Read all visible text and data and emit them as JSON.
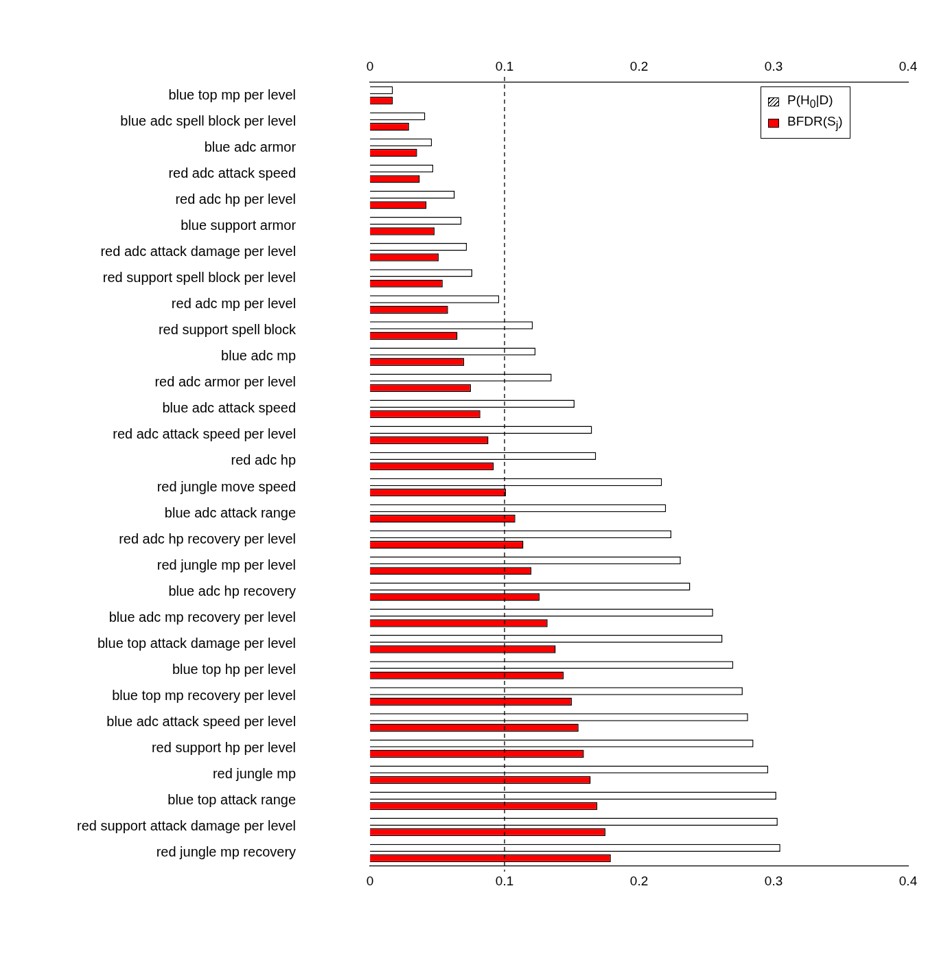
{
  "chart_data": {
    "type": "bar",
    "orientation": "horizontal",
    "categories": [
      "blue top mp per level",
      "blue adc spell block per level",
      "blue adc armor",
      "red adc attack speed",
      "red adc hp per level",
      "blue support armor",
      "red adc attack damage per level",
      "red support spell block per level",
      "red adc mp per level",
      "red support spell block",
      "blue adc mp",
      "red adc armor per level",
      "blue adc attack speed",
      "red adc attack speed per level",
      "red adc hp",
      "red jungle move speed",
      "blue adc attack range",
      "red adc hp recovery per level",
      "red jungle mp per level",
      "blue adc hp recovery",
      "blue adc mp recovery per level",
      "blue top attack damage per level",
      "blue top hp per level",
      "blue top mp recovery per level",
      "blue adc attack speed per level",
      "red support hp per level",
      "red jungle mp",
      "blue top attack range",
      "red support attack damage per level",
      "red jungle mp recovery"
    ],
    "series": [
      {
        "name": "P(H$_{0}$|D)",
        "color": "#ffffff",
        "values": [
          0.017,
          0.041,
          0.046,
          0.047,
          0.063,
          0.068,
          0.072,
          0.076,
          0.096,
          0.121,
          0.123,
          0.135,
          0.152,
          0.165,
          0.168,
          0.217,
          0.22,
          0.224,
          0.231,
          0.238,
          0.255,
          0.262,
          0.27,
          0.277,
          0.281,
          0.285,
          0.296,
          0.302,
          0.303,
          0.305
        ]
      },
      {
        "name": "BFDR(S$_{j}$)",
        "color": "#ff0000",
        "values": [
          0.017,
          0.029,
          0.035,
          0.037,
          0.042,
          0.048,
          0.051,
          0.054,
          0.058,
          0.065,
          0.07,
          0.075,
          0.082,
          0.088,
          0.092,
          0.101,
          0.108,
          0.114,
          0.12,
          0.126,
          0.132,
          0.138,
          0.144,
          0.15,
          0.155,
          0.159,
          0.164,
          0.169,
          0.175,
          0.179
        ]
      }
    ],
    "xlim": [
      0,
      0.4
    ],
    "xticks": [
      0,
      0.1,
      0.2,
      0.3,
      0.4
    ],
    "x2lim": [
      0,
      0.4
    ],
    "x2ticks": [
      0,
      0.1,
      0.2,
      0.3,
      0.4
    ],
    "ref_lines": [
      {
        "axis": "x",
        "value": 0.1,
        "color": "#000000",
        "line_style": "dashed"
      }
    ],
    "grid": false,
    "legend": "top right"
  }
}
